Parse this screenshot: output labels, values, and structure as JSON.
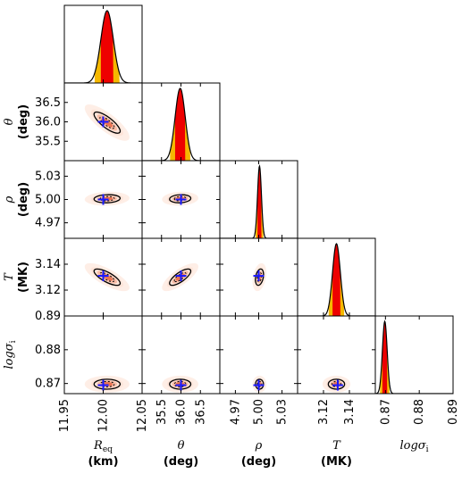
{
  "chart_data": {
    "type": "corner",
    "parameters": [
      {
        "key": "Req",
        "label": "R",
        "sub": "eq",
        "unit": "(km)",
        "range": [
          11.95,
          12.05
        ],
        "ticks": [
          "11.95",
          "12.00",
          "12.05"
        ],
        "truth": 12.0,
        "mean": 12.005,
        "sd": 0.008
      },
      {
        "key": "theta",
        "label": "θ",
        "sub": "",
        "unit": "(deg)",
        "range": [
          35.0,
          37.0
        ],
        "ticks": [
          "35.5",
          "36.0",
          "36.5"
        ],
        "truth": 36.0,
        "mean": 35.98,
        "sd": 0.13
      },
      {
        "key": "rho",
        "label": "ρ",
        "sub": "",
        "unit": "(deg)",
        "range": [
          4.95,
          5.05
        ],
        "ticks": [
          "4.97",
          "5.00",
          "5.03"
        ],
        "truth": 5.0,
        "mean": 5.001,
        "sd": 0.0025
      },
      {
        "key": "T",
        "label": "T",
        "sub": "",
        "unit": "(MK)",
        "range": [
          3.1,
          3.16
        ],
        "ticks": [
          "3.12",
          "3.14"
        ],
        "truth": 3.131,
        "mean": 3.13,
        "sd": 0.003
      },
      {
        "key": "logsig",
        "label": "logσ",
        "sub": "i",
        "unit": "",
        "range": [
          0.867,
          0.89
        ],
        "ticks": [
          "0.87",
          "0.88",
          "0.89"
        ],
        "truth": 0.8695,
        "mean": 0.8698,
        "sd": 0.0007
      }
    ],
    "correlations": {
      "1-0": -0.8,
      "2-0": 0.1,
      "2-1": 0.1,
      "3-0": -0.75,
      "3-1": 0.75,
      "3-2": 0.3,
      "4-0": 0.0,
      "4-1": 0.0,
      "4-2": 0.0,
      "4-3": 0.0
    },
    "colors": {
      "marg_outer": "#f5b800",
      "marg_inner": "#ee0000",
      "density": "#e8603c",
      "haze": "#fde0d2",
      "truth": "#1a1aff"
    }
  }
}
